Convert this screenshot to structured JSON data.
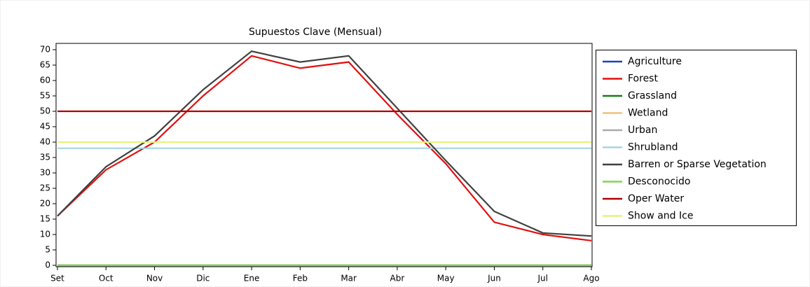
{
  "chart_data": {
    "type": "line",
    "title": "Supuestos Clave (Mensual)",
    "categories": [
      "Set",
      "Oct",
      "Nov",
      "Dic",
      "Ene",
      "Feb",
      "Mar",
      "Abr",
      "May",
      "Jun",
      "Jul",
      "Ago"
    ],
    "series": [
      {
        "name": "Agriculture",
        "color": "#1f3fbf",
        "values": [
          0,
          0,
          0,
          0,
          0,
          0,
          0,
          0,
          0,
          0,
          0,
          0
        ]
      },
      {
        "name": "Forest",
        "color": "#e01010",
        "values": [
          16,
          31,
          40,
          55,
          68,
          64,
          66,
          49,
          33,
          14,
          10,
          8
        ]
      },
      {
        "name": "Grassland",
        "color": "#1a7a1a",
        "values": [
          0,
          0,
          0,
          0,
          0,
          0,
          0,
          0,
          0,
          0,
          0,
          0
        ]
      },
      {
        "name": "Wetland",
        "color": "#f0c27a",
        "values": [
          0,
          0,
          0,
          0,
          0,
          0,
          0,
          0,
          0,
          0,
          0,
          0
        ]
      },
      {
        "name": "Urban",
        "color": "#aaaaaa",
        "values": [
          0,
          0,
          0,
          0,
          0,
          0,
          0,
          0,
          0,
          0,
          0,
          0
        ]
      },
      {
        "name": "Shrubland",
        "color": "#a8d4e0",
        "values": [
          38,
          38,
          38,
          38,
          38,
          38,
          38,
          38,
          38,
          38,
          38,
          38
        ]
      },
      {
        "name": "Barren or Sparse Vegetation",
        "color": "#404040",
        "values": [
          16,
          32,
          42,
          57,
          69.5,
          66,
          68,
          51,
          34,
          17.5,
          10.5,
          9.5
        ]
      },
      {
        "name": "Desconocido",
        "color": "#7fd64a",
        "values": [
          0,
          0,
          0,
          0,
          0,
          0,
          0,
          0,
          0,
          0,
          0,
          0
        ]
      },
      {
        "name": "Oper Water",
        "color": "#b00000",
        "values": [
          50,
          50,
          50,
          50,
          50,
          50,
          50,
          50,
          50,
          50,
          50,
          50
        ]
      },
      {
        "name": "Show and Ice",
        "color": "#e4f37a",
        "values": [
          40,
          40,
          40,
          40,
          40,
          40,
          40,
          40,
          40,
          40,
          40,
          40
        ]
      }
    ],
    "ylim": [
      0,
      70
    ],
    "yticks": [
      0,
      5,
      10,
      15,
      20,
      25,
      30,
      35,
      40,
      45,
      50,
      55,
      60,
      65,
      70
    ]
  }
}
